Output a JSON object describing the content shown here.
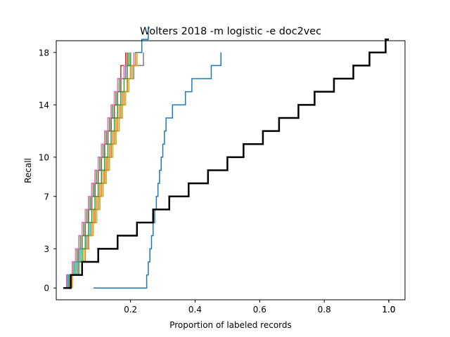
{
  "chart_data": {
    "type": "line",
    "title": "Wolters 2018 -m logistic -e doc2vec",
    "xlabel": "Proportion of labeled records",
    "ylabel": "Recall",
    "xlim": [
      -0.03,
      1.05
    ],
    "ylim": [
      -0.9,
      18.9
    ],
    "xticks": [
      {
        "value": 0.2,
        "label": "0.2"
      },
      {
        "value": 0.4,
        "label": "0.4"
      },
      {
        "value": 0.6,
        "label": "0.6"
      },
      {
        "value": 0.8,
        "label": "0.8"
      },
      {
        "value": 0.9995,
        "label": "1.0"
      },
      {
        "value": 1.0,
        "label": "1.0"
      }
    ],
    "yticks": [
      {
        "value": 0,
        "label": "0"
      },
      {
        "value": 3,
        "label": "3"
      },
      {
        "value": 7,
        "label": "7"
      },
      {
        "value": 10,
        "label": "10"
      },
      {
        "value": 14,
        "label": "14"
      },
      {
        "value": 18,
        "label": "18"
      }
    ],
    "grid": false,
    "legend": "none",
    "series": [
      {
        "color": "#1f77b4",
        "step_x": [
          0.002,
          0.05,
          0.06,
          0.07,
          0.08,
          0.09,
          0.1,
          0.11,
          0.12,
          0.13,
          0.14,
          0.15,
          0.16,
          0.17,
          0.18,
          0.19,
          0.2,
          0.215,
          0.235,
          0.255
        ],
        "linewidth": 1.5
      },
      {
        "color": "#ff7f0e",
        "step_x": [
          0.01,
          0.04,
          0.05,
          0.06,
          0.075,
          0.085,
          0.095,
          0.105,
          0.115,
          0.125,
          0.135,
          0.145,
          0.155,
          0.165,
          0.175,
          0.19,
          0.205,
          0.22
        ],
        "linewidth": 1.5
      },
      {
        "color": "#2ca02c",
        "step_x": [
          0.005,
          0.025,
          0.035,
          0.045,
          0.055,
          0.065,
          0.075,
          0.085,
          0.095,
          0.105,
          0.115,
          0.125,
          0.135,
          0.145,
          0.155,
          0.165,
          0.18,
          0.195
        ],
        "linewidth": 1.5
      },
      {
        "color": "#d62728",
        "step_x": [
          0.004,
          0.02,
          0.03,
          0.04,
          0.05,
          0.06,
          0.07,
          0.08,
          0.09,
          0.1,
          0.11,
          0.12,
          0.13,
          0.14,
          0.15,
          0.16,
          0.17,
          0.185
        ],
        "linewidth": 1.5
      },
      {
        "color": "#9467bd",
        "step_x": [
          0.006,
          0.03,
          0.04,
          0.05,
          0.06,
          0.07,
          0.08,
          0.09,
          0.1,
          0.11,
          0.12,
          0.13,
          0.14,
          0.15,
          0.16,
          0.17,
          0.185,
          0.2
        ],
        "linewidth": 1.5
      },
      {
        "color": "#8c564b",
        "step_x": [
          0.008,
          0.03,
          0.04,
          0.05,
          0.06,
          0.07,
          0.08,
          0.09,
          0.1,
          0.11,
          0.12,
          0.13,
          0.14,
          0.15,
          0.16,
          0.17,
          0.18,
          0.19
        ],
        "linewidth": 1.5
      },
      {
        "color": "#e377c2",
        "step_x": [
          0.003,
          0.02,
          0.03,
          0.04,
          0.05,
          0.06,
          0.07,
          0.08,
          0.09,
          0.1,
          0.11,
          0.12,
          0.13,
          0.14,
          0.15,
          0.16,
          0.18,
          0.21
        ],
        "linewidth": 1.5
      },
      {
        "color": "#7f7f7f",
        "step_x": [
          0.01,
          0.035,
          0.05,
          0.065,
          0.08,
          0.095,
          0.105,
          0.115,
          0.125,
          0.135,
          0.145,
          0.155,
          0.165,
          0.175,
          0.185,
          0.195,
          0.21,
          0.24
        ],
        "linewidth": 1.5
      },
      {
        "color": "#bcbd22",
        "step_x": [
          0.012,
          0.04,
          0.055,
          0.07,
          0.085,
          0.095,
          0.105,
          0.115,
          0.125,
          0.135,
          0.145,
          0.155,
          0.165,
          0.175,
          0.185,
          0.195,
          0.205,
          0.22
        ],
        "linewidth": 1.5
      },
      {
        "color": "#17becf",
        "step_x": [
          0.007,
          0.03,
          0.045,
          0.06,
          0.075,
          0.09,
          0.1,
          0.11,
          0.12,
          0.13,
          0.14,
          0.15,
          0.16,
          0.17,
          0.18,
          0.19,
          0.2,
          0.215
        ],
        "linewidth": 1.5
      },
      {
        "color": "#1f77b4",
        "step_x": [
          0.25,
          0.255,
          0.26,
          0.265,
          0.27,
          0.275,
          0.28,
          0.285,
          0.29,
          0.295,
          0.3,
          0.305,
          0.31,
          0.33,
          0.37,
          0.39,
          0.45,
          0.48
        ],
        "x_start": 0.085,
        "linewidth": 1.5
      },
      {
        "color": "#ff7f0e",
        "step_x": [
          0.02,
          0.05,
          0.06,
          0.07,
          0.08,
          0.09,
          0.1,
          0.11,
          0.12,
          0.13,
          0.14,
          0.15,
          0.16,
          0.17,
          0.18,
          0.19,
          0.2,
          0.215
        ],
        "linewidth": 1.5
      },
      {
        "color": "#2ca02c",
        "step_x": [
          0.015,
          0.04,
          0.05,
          0.06,
          0.07,
          0.08,
          0.09,
          0.1,
          0.11,
          0.12,
          0.13,
          0.14,
          0.15,
          0.16,
          0.17,
          0.18,
          0.19,
          0.2
        ],
        "linewidth": 1.5
      },
      {
        "color": "#000000",
        "step_x": [
          0.015,
          0.05,
          0.1,
          0.16,
          0.22,
          0.27,
          0.32,
          0.38,
          0.44,
          0.5,
          0.55,
          0.61,
          0.66,
          0.72,
          0.77,
          0.83,
          0.89,
          0.94,
          0.99
        ],
        "x_start": -0.008,
        "x_end": 1.0,
        "linewidth": 2.5
      }
    ]
  }
}
